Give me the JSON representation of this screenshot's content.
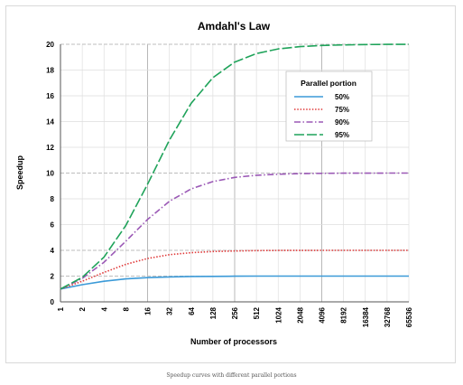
{
  "caption": "Speedup curves with different parallel portions",
  "chart_data": {
    "type": "line",
    "title": "Amdahl's Law",
    "xlabel": "Number of processors",
    "ylabel": "Speedup",
    "x_scale": "log2",
    "x": [
      1,
      2,
      4,
      8,
      16,
      32,
      64,
      128,
      256,
      512,
      1024,
      2048,
      4096,
      8192,
      16384,
      32768,
      65536
    ],
    "x_tick_labels": [
      "1",
      "2",
      "4",
      "8",
      "16",
      "32",
      "64",
      "128",
      "256",
      "512",
      "1024",
      "2048",
      "4096",
      "8192",
      "16384",
      "32768",
      "65536"
    ],
    "ylim": [
      0,
      20
    ],
    "y_ticks": [
      0,
      2,
      4,
      6,
      8,
      10,
      12,
      14,
      16,
      18,
      20
    ],
    "y_tick_labels": [
      "0",
      "2",
      "4",
      "6",
      "8",
      "10",
      "12",
      "14",
      "16",
      "18",
      "20"
    ],
    "grid": true,
    "legend_title": "Parallel portion",
    "legend_position": "upper-right",
    "series": [
      {
        "name": "50%",
        "color": "#3b9ad8",
        "dash": "solid",
        "values": [
          1,
          1.33,
          1.6,
          1.78,
          1.88,
          1.94,
          1.97,
          1.98,
          1.99,
          2.0,
          2.0,
          2.0,
          2.0,
          2.0,
          2.0,
          2.0,
          2.0
        ]
      },
      {
        "name": "75%",
        "color": "#e03a3a",
        "dash": "dotted",
        "values": [
          1,
          1.6,
          2.29,
          2.91,
          3.37,
          3.66,
          3.82,
          3.91,
          3.95,
          3.98,
          3.99,
          3.99,
          4.0,
          4.0,
          4.0,
          4.0,
          4.0
        ]
      },
      {
        "name": "90%",
        "color": "#9b59b6",
        "dash": "dashdot",
        "values": [
          1,
          1.82,
          3.08,
          4.71,
          6.4,
          7.8,
          8.77,
          9.34,
          9.66,
          9.83,
          9.91,
          9.96,
          9.98,
          9.99,
          9.99,
          10.0,
          10.0
        ]
      },
      {
        "name": "95%",
        "color": "#1fa35a",
        "dash": "dashed",
        "values": [
          1,
          1.9,
          3.48,
          5.93,
          9.14,
          12.55,
          15.42,
          17.41,
          18.62,
          19.28,
          19.64,
          19.82,
          19.91,
          19.95,
          19.98,
          19.99,
          19.99
        ]
      }
    ]
  }
}
